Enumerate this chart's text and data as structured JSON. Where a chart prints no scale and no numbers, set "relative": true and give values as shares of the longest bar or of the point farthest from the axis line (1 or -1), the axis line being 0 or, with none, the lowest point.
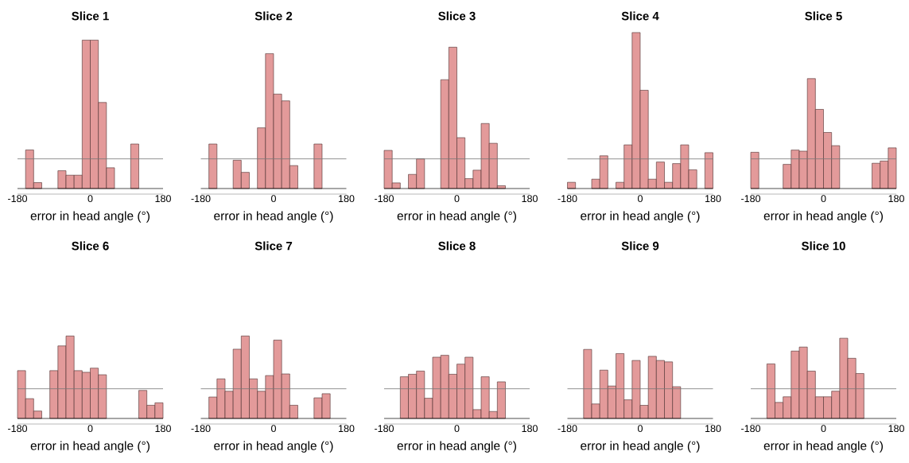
{
  "chart_data": [
    {
      "type": "bar",
      "title": "Slice 1",
      "xlabel": "error in head angle (°)",
      "relative": true,
      "color": "#e39a9a",
      "x": [
        -170,
        -150,
        -130,
        -110,
        -90,
        -70,
        -50,
        -30,
        -10,
        10,
        30,
        50,
        70,
        90,
        110,
        130,
        150,
        170
      ],
      "values": [
        0,
        0.26,
        0.04,
        0,
        0,
        0.12,
        0.09,
        0.09,
        1,
        1,
        0.58,
        0.14,
        0,
        0,
        0.3,
        0,
        0,
        0
      ],
      "xlim": [
        -180,
        180
      ],
      "xticks": [
        -180,
        0,
        180
      ],
      "ref_lines": [
        {
          "axis": "y",
          "value": 0.2,
          "color": "#777777"
        }
      ]
    },
    {
      "type": "bar",
      "title": "Slice 2",
      "xlabel": "error in head angle (°)",
      "relative": true,
      "color": "#e39a9a",
      "x": [
        -170,
        -150,
        -130,
        -110,
        -90,
        -70,
        -50,
        -30,
        -10,
        10,
        30,
        50,
        70,
        90,
        110,
        130,
        150,
        170
      ],
      "values": [
        0,
        0.33,
        0,
        0,
        0.21,
        0.12,
        0,
        0.45,
        1,
        0.7,
        0.65,
        0.17,
        0,
        0,
        0.33,
        0,
        0,
        0
      ],
      "xlim": [
        -180,
        180
      ],
      "xticks": [
        -180,
        0,
        180
      ],
      "ref_lines": [
        {
          "axis": "y",
          "value": 0.22,
          "color": "#777777"
        }
      ]
    },
    {
      "type": "bar",
      "title": "Slice 3",
      "xlabel": "error in head angle (°)",
      "relative": true,
      "color": "#e39a9a",
      "x": [
        -170,
        -150,
        -130,
        -110,
        -90,
        -70,
        -50,
        -30,
        -10,
        10,
        30,
        50,
        70,
        90,
        110,
        130,
        150,
        170
      ],
      "values": [
        0.27,
        0.04,
        0,
        0.1,
        0.21,
        0,
        0,
        0.77,
        1,
        0.36,
        0.07,
        0.13,
        0.46,
        0.32,
        0.02,
        0,
        0,
        0
      ],
      "xlim": [
        -180,
        180
      ],
      "xticks": [
        -180,
        0,
        180
      ],
      "ref_lines": [
        {
          "axis": "y",
          "value": 0.21,
          "color": "#777777"
        }
      ]
    },
    {
      "type": "bar",
      "title": "Slice 4",
      "xlabel": "error in head angle (°)",
      "relative": true,
      "color": "#e39a9a",
      "x": [
        -170,
        -150,
        -130,
        -110,
        -90,
        -70,
        -50,
        -30,
        -10,
        10,
        30,
        50,
        70,
        90,
        110,
        130,
        150,
        170
      ],
      "values": [
        0.04,
        0,
        0,
        0.06,
        0.21,
        0,
        0.04,
        0.28,
        1,
        0.63,
        0.06,
        0.17,
        0.04,
        0.16,
        0.28,
        0.12,
        0,
        0.23
      ],
      "xlim": [
        -180,
        180
      ],
      "xticks": [
        -180,
        0,
        180
      ],
      "ref_lines": [
        {
          "axis": "y",
          "value": 0.19,
          "color": "#777777"
        }
      ]
    },
    {
      "type": "bar",
      "title": "Slice 5",
      "xlabel": "error in head angle (°)",
      "relative": true,
      "color": "#e39a9a",
      "x": [
        -170,
        -150,
        -130,
        -110,
        -90,
        -70,
        -50,
        -30,
        -10,
        10,
        30,
        50,
        70,
        90,
        110,
        130,
        150,
        170
      ],
      "values": [
        0.33,
        0,
        0,
        0,
        0.22,
        0.35,
        0.34,
        1,
        0.72,
        0.51,
        0.39,
        0,
        0,
        0,
        0,
        0.23,
        0.25,
        0.37
      ],
      "xlim": [
        -180,
        180
      ],
      "xticks": [
        -180,
        0,
        180
      ],
      "ref_lines": [
        {
          "axis": "y",
          "value": 0.27,
          "color": "#777777"
        }
      ]
    },
    {
      "type": "bar",
      "title": "Slice 6",
      "xlabel": "error in head angle (°)",
      "relative": true,
      "color": "#e39a9a",
      "x": [
        -170,
        -150,
        -130,
        -110,
        -90,
        -70,
        -50,
        -30,
        -10,
        10,
        30,
        50,
        70,
        90,
        110,
        130,
        150,
        170
      ],
      "values": [
        0.58,
        0.24,
        0.09,
        0,
        0.58,
        0.88,
        1,
        0.58,
        0.56,
        0.61,
        0.53,
        0,
        0,
        0,
        0,
        0.34,
        0.16,
        0.19
      ],
      "xlim": [
        -180,
        180
      ],
      "xticks": [
        -180,
        0,
        180
      ],
      "ref_lines": [
        {
          "axis": "y",
          "value": 0.36,
          "color": "#777777"
        }
      ]
    },
    {
      "type": "bar",
      "title": "Slice 7",
      "xlabel": "error in head angle (°)",
      "relative": true,
      "color": "#e39a9a",
      "x": [
        -170,
        -150,
        -130,
        -110,
        -90,
        -70,
        -50,
        -30,
        -10,
        10,
        30,
        50,
        70,
        90,
        110,
        130,
        150,
        170
      ],
      "values": [
        0,
        0.26,
        0.48,
        0.33,
        0.84,
        1,
        0.48,
        0.33,
        0.52,
        0.95,
        0.54,
        0.16,
        0,
        0,
        0.25,
        0.3,
        0,
        0
      ],
      "xlim": [
        -180,
        180
      ],
      "xticks": [
        -180,
        0,
        180
      ],
      "ref_lines": [
        {
          "axis": "y",
          "value": 0.36,
          "color": "#777777"
        }
      ]
    },
    {
      "type": "bar",
      "title": "Slice 8",
      "xlabel": "error in head angle (°)",
      "relative": true,
      "color": "#e39a9a",
      "x": [
        -170,
        -150,
        -130,
        -110,
        -90,
        -70,
        -50,
        -30,
        -10,
        10,
        30,
        50,
        70,
        90,
        110,
        130,
        150,
        170
      ],
      "values": [
        0,
        0,
        0.66,
        0.7,
        0.75,
        0.32,
        0.97,
        1,
        0.7,
        0.86,
        0.97,
        0.14,
        0.66,
        0.11,
        0.58,
        0,
        0,
        0
      ],
      "xlim": [
        -180,
        180
      ],
      "xticks": [
        -180,
        0,
        180
      ],
      "ref_lines": [
        {
          "axis": "y",
          "value": 0.47,
          "color": "#777777"
        }
      ]
    },
    {
      "type": "bar",
      "title": "Slice 9",
      "xlabel": "error in head angle (°)",
      "relative": true,
      "color": "#e39a9a",
      "x": [
        -170,
        -150,
        -130,
        -110,
        -90,
        -70,
        -50,
        -30,
        -10,
        10,
        30,
        50,
        70,
        90,
        110,
        130,
        150,
        170
      ],
      "values": [
        0,
        0,
        1,
        0.21,
        0.7,
        0.47,
        0.94,
        0.27,
        0.84,
        0.19,
        0.9,
        0.84,
        0.82,
        0.46,
        0,
        0,
        0,
        0
      ],
      "xlim": [
        -180,
        180
      ],
      "xticks": [
        -180,
        0,
        180
      ],
      "ref_lines": [
        {
          "axis": "y",
          "value": 0.43,
          "color": "#777777"
        }
      ]
    },
    {
      "type": "bar",
      "title": "Slice 10",
      "xlabel": "error in head angle (°)",
      "relative": true,
      "color": "#e39a9a",
      "x": [
        -170,
        -150,
        -130,
        -110,
        -90,
        -70,
        -50,
        -30,
        -10,
        10,
        30,
        50,
        70,
        90,
        110,
        130,
        150,
        170
      ],
      "values": [
        0,
        0,
        0.68,
        0.2,
        0.27,
        0.84,
        0.89,
        0.59,
        0.27,
        0.27,
        0.34,
        1,
        0.75,
        0.56,
        0,
        0,
        0,
        0
      ],
      "xlim": [
        -180,
        180
      ],
      "xticks": [
        -180,
        0,
        180
      ],
      "ref_lines": [
        {
          "axis": "y",
          "value": 0.37,
          "color": "#777777"
        }
      ]
    }
  ]
}
